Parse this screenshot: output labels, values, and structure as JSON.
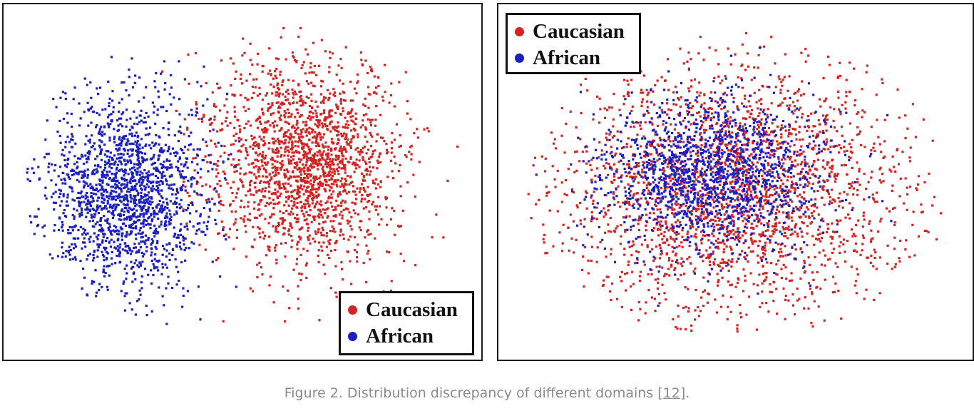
{
  "colors": {
    "caucasian": "#d42323",
    "african": "#1c1fc0",
    "caption_text": "#8a8a8a"
  },
  "chart_data": [
    {
      "type": "scatter",
      "title": "",
      "xlabel": "",
      "ylabel": "",
      "grid": false,
      "xlim": [
        -1,
        1
      ],
      "ylim": [
        -1,
        1
      ],
      "legend_position": "bottom-right",
      "series": [
        {
          "name": "Caucasian",
          "color": "#d42323",
          "count": 1900,
          "center": [
            0.28,
            0.12
          ],
          "spread": [
            0.42,
            0.62
          ]
        },
        {
          "name": "African",
          "color": "#1c1fc0",
          "count": 1700,
          "center": [
            -0.52,
            -0.05
          ],
          "spread": [
            0.36,
            0.6
          ]
        }
      ]
    },
    {
      "type": "scatter",
      "title": "",
      "xlabel": "",
      "ylabel": "",
      "grid": false,
      "xlim": [
        -1,
        1
      ],
      "ylim": [
        -1,
        1
      ],
      "legend_position": "top-left",
      "series": [
        {
          "name": "Caucasian",
          "color": "#d42323",
          "count": 2300,
          "center": [
            0.0,
            0.0
          ],
          "spread": [
            0.85,
            0.82
          ]
        },
        {
          "name": "African",
          "color": "#1c1fc0",
          "count": 1500,
          "center": [
            -0.1,
            0.08
          ],
          "spread": [
            0.5,
            0.5
          ]
        }
      ]
    }
  ],
  "legend": {
    "caucasian_label": "Caucasian",
    "african_label": "African"
  },
  "caption": {
    "text": "Figure 2. Distribution discrepancy of different domains [",
    "ref": "12",
    "end": "]."
  }
}
